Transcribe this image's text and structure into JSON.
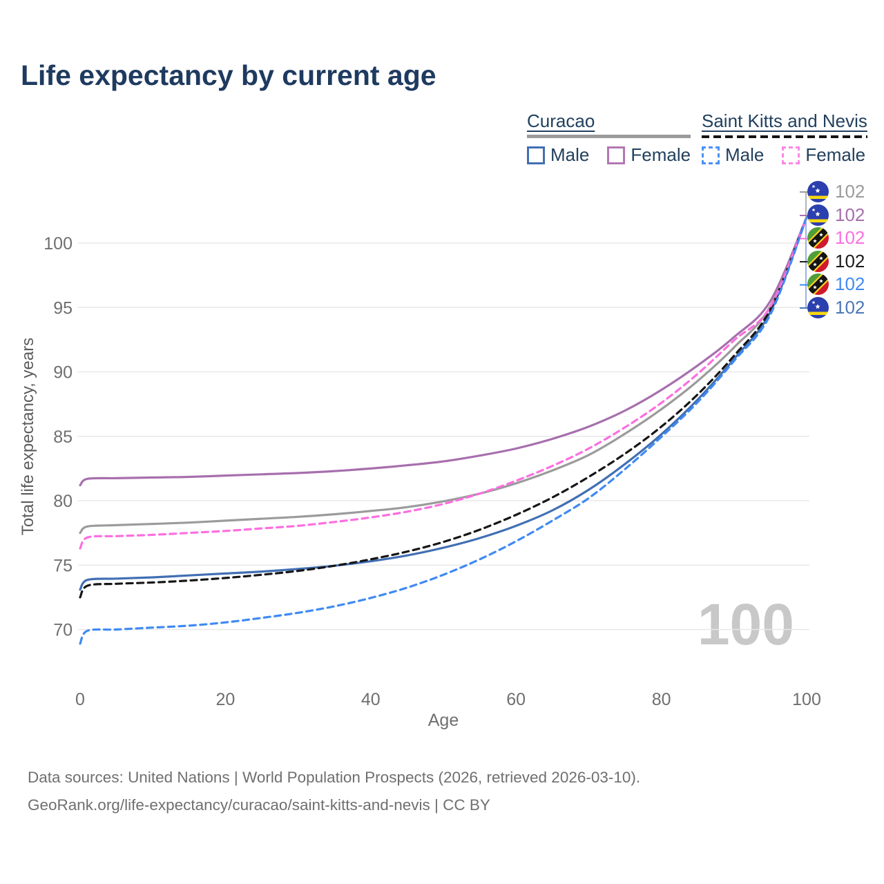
{
  "title": "Life expectancy by current age",
  "legend": {
    "groups": [
      {
        "id": "curacao",
        "label": "Curacao",
        "series_line": {
          "style": "solid",
          "color": "#9b9b9b"
        },
        "items": [
          {
            "id": "curacao-male",
            "label": "Male",
            "color": "#416fb3",
            "style": "solid"
          },
          {
            "id": "curacao-female",
            "label": "Female",
            "color": "#b377b3",
            "style": "solid"
          }
        ]
      },
      {
        "id": "saint-kitts-and-nevis",
        "label": "Saint Kitts and Nevis",
        "series_line": {
          "style": "dashed",
          "color": "#141414"
        },
        "items": [
          {
            "id": "skn-male",
            "label": "Male",
            "color": "#4a90f5",
            "style": "dashed"
          },
          {
            "id": "skn-female",
            "label": "Female",
            "color": "#fb87e8",
            "style": "dashed"
          }
        ]
      }
    ]
  },
  "chart_data": {
    "type": "line",
    "xlabel": "Age",
    "ylabel": "Total life expectancy, years",
    "x_ticks": [
      0,
      20,
      40,
      60,
      80,
      100
    ],
    "y_ticks": [
      70,
      75,
      80,
      85,
      90,
      95,
      100
    ],
    "xlim": [
      0,
      100
    ],
    "ylim": [
      68,
      103
    ],
    "grid": "horizontal-only",
    "legend_position": "top-right",
    "ages": [
      0,
      1,
      5,
      10,
      15,
      20,
      25,
      30,
      35,
      40,
      45,
      50,
      55,
      60,
      65,
      70,
      75,
      80,
      85,
      90,
      95,
      100
    ],
    "series": [
      {
        "id": "curacao-total",
        "name": "Curacao Total",
        "color": "#9b9b9b",
        "dash": false,
        "values": [
          77.5,
          78.0,
          78.1,
          78.2,
          78.3,
          78.45,
          78.6,
          78.75,
          78.95,
          79.2,
          79.5,
          79.95,
          80.55,
          81.35,
          82.35,
          83.55,
          85.2,
          87.1,
          89.3,
          91.9,
          95.1,
          102
        ]
      },
      {
        "id": "curacao-female",
        "name": "Curacao Female",
        "color": "#a76fad",
        "dash": false,
        "values": [
          81.2,
          81.7,
          81.75,
          81.8,
          81.85,
          81.95,
          82.05,
          82.15,
          82.3,
          82.5,
          82.75,
          83.05,
          83.5,
          84.05,
          84.8,
          85.75,
          87.0,
          88.6,
          90.5,
          92.7,
          95.5,
          102
        ]
      },
      {
        "id": "curacao-male",
        "name": "Curacao Male",
        "color": "#416fb3",
        "dash": false,
        "values": [
          73.1,
          73.85,
          73.95,
          74.05,
          74.2,
          74.35,
          74.5,
          74.7,
          74.95,
          75.3,
          75.75,
          76.35,
          77.1,
          78.05,
          79.25,
          80.85,
          82.85,
          85.15,
          87.85,
          91.0,
          94.65,
          102
        ]
      },
      {
        "id": "skn-total",
        "name": "Saint Kitts and Nevis Total",
        "color": "#161616",
        "dash": true,
        "values": [
          72.5,
          73.4,
          73.55,
          73.65,
          73.8,
          74.0,
          74.25,
          74.55,
          74.95,
          75.45,
          76.05,
          76.8,
          77.75,
          78.9,
          80.25,
          81.85,
          83.65,
          85.75,
          88.25,
          91.25,
          94.85,
          102
        ]
      },
      {
        "id": "skn-female",
        "name": "Saint Kitts and Nevis Female",
        "color": "#fb6fe0",
        "dash": true,
        "values": [
          76.3,
          77.15,
          77.25,
          77.35,
          77.5,
          77.65,
          77.85,
          78.05,
          78.35,
          78.7,
          79.15,
          79.75,
          80.55,
          81.55,
          82.7,
          84.05,
          85.7,
          87.6,
          89.85,
          92.45,
          95.05,
          102
        ]
      },
      {
        "id": "skn-male",
        "name": "Saint Kitts and Nevis Male",
        "color": "#3f8af3",
        "dash": true,
        "values": [
          68.9,
          69.9,
          70.0,
          70.15,
          70.3,
          70.55,
          70.9,
          71.3,
          71.8,
          72.45,
          73.25,
          74.25,
          75.45,
          76.85,
          78.45,
          80.2,
          82.45,
          84.95,
          87.65,
          90.85,
          94.45,
          102
        ]
      }
    ]
  },
  "end_labels": [
    {
      "flag": "curacao",
      "value": "102",
      "color": "#9b9b9b"
    },
    {
      "flag": "curacao",
      "value": "102",
      "color": "#a76fad"
    },
    {
      "flag": "skn",
      "value": "102",
      "color": "#fb6fe0"
    },
    {
      "flag": "skn",
      "value": "102",
      "color": "#1c1c1c"
    },
    {
      "flag": "skn",
      "value": "102",
      "color": "#3f8af3"
    },
    {
      "flag": "curacao",
      "value": "102",
      "color": "#4a77b8"
    }
  ],
  "hover_age_watermark": "100",
  "footer": {
    "line1": "Data sources: United Nations | World Population Prospects (2026, retrieved 2026-03-10).",
    "line2": "GeoRank.org/life-expectancy/curacao/saint-kitts-and-nevis | CC BY"
  },
  "colors": {
    "title": "#1e3a5f",
    "legend_text": "#22405e",
    "tick_label": "#6f6f6f",
    "axis_title": "#5c5c5c",
    "gridline": "#e8e8e8",
    "watermark": "#c8c8c8",
    "footer": "#6f6f6f"
  }
}
